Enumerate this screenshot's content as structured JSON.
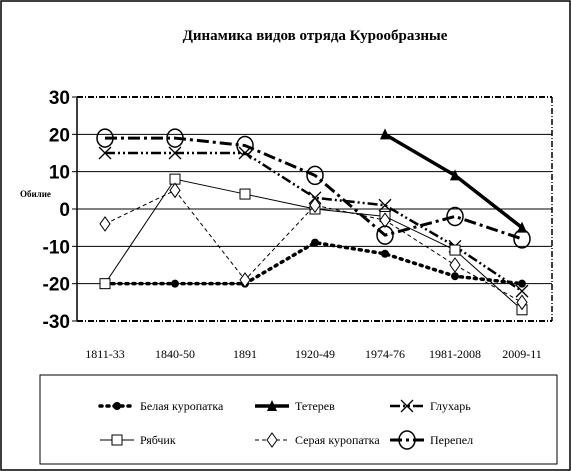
{
  "chart_data": {
    "type": "line",
    "title": "Динамика видов отряда Курообразные",
    "ylabel": "Обилие",
    "xlabel": "",
    "ylim": [
      -30,
      30
    ],
    "yticks": [
      "30",
      "20",
      "10",
      "0",
      "-10",
      "-20",
      "-30"
    ],
    "ytick_values": [
      30,
      20,
      10,
      0,
      -10,
      -20,
      -30
    ],
    "categories": [
      "1811-33",
      "1840-50",
      "1891",
      "1920-49",
      "1974-76",
      "1981-2008",
      "2009-11"
    ],
    "grid": true,
    "legend_position": "bottom",
    "series": [
      {
        "name": "Белая куропатка",
        "marker": "dot",
        "dash": "dotted-thick",
        "color": "#000000",
        "values": [
          -20,
          -20,
          -20,
          -9,
          -12,
          -18,
          -20
        ]
      },
      {
        "name": "Тетерев",
        "marker": "triangle",
        "dash": "solid-thick",
        "color": "#000000",
        "values": [
          null,
          null,
          null,
          null,
          20,
          9,
          -5
        ]
      },
      {
        "name": "Глухарь",
        "marker": "x",
        "dash": "dash-dot-dot",
        "color": "#000000",
        "values": [
          15,
          15,
          15,
          3,
          1,
          -10,
          -22
        ]
      },
      {
        "name": "Рябчик",
        "marker": "square",
        "dash": "solid-thin",
        "color": "#000000",
        "values": [
          -20,
          8,
          4,
          0,
          -2,
          -11,
          -27
        ]
      },
      {
        "name": "Серая куропатка",
        "marker": "diamond",
        "dash": "dashed-thin",
        "color": "#000000",
        "values": [
          -4,
          5,
          -19,
          1,
          -3,
          -15,
          -25
        ]
      },
      {
        "name": "Перепел",
        "marker": "circle",
        "dash": "dash-dot",
        "color": "#000000",
        "values": [
          19,
          19,
          17,
          9,
          -7,
          -2,
          -8
        ]
      }
    ]
  }
}
